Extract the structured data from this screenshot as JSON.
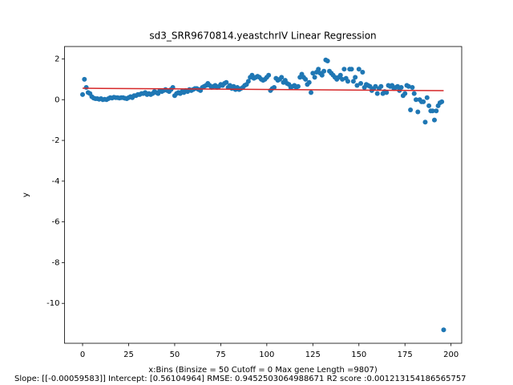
{
  "chart_data": {
    "type": "scatter",
    "title": "sd3_SRR9670814.yeastchrIV Linear Regression",
    "ylabel": "y",
    "xlabel": "x:Bins  (Binsize = 50 Cutoff = 0 Max gene Length =9807)",
    "stats": "Slope: [[-0.00059583]] Intercept: [0.56104964] RMSE: 0.9452503064988671 R2 score :0.001213154186565757",
    "xlim": [
      -9.8,
      205.8
    ],
    "ylim": [
      -11.96,
      2.61
    ],
    "xticks": [
      0,
      25,
      50,
      75,
      100,
      125,
      150,
      175,
      200
    ],
    "yticks": [
      -10,
      -8,
      -6,
      -4,
      -2,
      0,
      2
    ],
    "color": "#1f77b4",
    "values": [
      0.25,
      1.0,
      0.6,
      0.35,
      0.3,
      0.15,
      0.08,
      0.05,
      0.05,
      0.02,
      0.05,
      0,
      0.02,
      0,
      0.05,
      0.1,
      0.08,
      0.12,
      0.1,
      0.1,
      0.08,
      0.1,
      0.1,
      0.07,
      0.05,
      0.1,
      0.15,
      0.1,
      0.2,
      0.2,
      0.25,
      0.25,
      0.3,
      0.3,
      0.35,
      0.25,
      0.3,
      0.25,
      0.3,
      0.4,
      0.35,
      0.3,
      0.45,
      0.4,
      0.45,
      0.5,
      0.45,
      0.4,
      0.5,
      0.6,
      0.2,
      0.3,
      0.35,
      0.3,
      0.4,
      0.35,
      0.45,
      0.4,
      0.5,
      0.45,
      0.5,
      0.55,
      0.55,
      0.5,
      0.45,
      0.6,
      0.65,
      0.7,
      0.8,
      0.7,
      0.6,
      0.65,
      0.7,
      0.6,
      0.65,
      0.75,
      0.7,
      0.8,
      0.85,
      0.6,
      0.7,
      0.55,
      0.65,
      0.5,
      0.6,
      0.5,
      0.55,
      0.6,
      0.7,
      0.75,
      0.9,
      1.1,
      1.2,
      1.05,
      1.1,
      1.15,
      1.1,
      1.0,
      0.95,
      1.0,
      1.1,
      1.2,
      0.45,
      0.55,
      0.6,
      1.05,
      0.95,
      1.0,
      1.1,
      0.85,
      0.95,
      0.8,
      0.75,
      0.6,
      0.65,
      0.7,
      0.6,
      0.65,
      1.1,
      1.25,
      1.1,
      1.0,
      0.75,
      0.85,
      0.35,
      1.3,
      1.1,
      1.35,
      1.5,
      1.3,
      1.2,
      1.4,
      1.95,
      1.9,
      1.4,
      1.3,
      1.2,
      1.1,
      1.0,
      1.1,
      1.2,
      1.0,
      1.5,
      1.05,
      0.9,
      1.5,
      1.5,
      0.9,
      1.1,
      0.7,
      1.5,
      0.8,
      1.35,
      0.6,
      0.75,
      0.7,
      0.65,
      0.45,
      0.55,
      0.65,
      0.3,
      0.55,
      0.65,
      0.3,
      0.4,
      0.35,
      0.7,
      0.65,
      0.7,
      0.55,
      0.6,
      0.65,
      0.45,
      0.6,
      0.2,
      0.3,
      0.7,
      0.65,
      -0.5,
      0.6,
      0.3,
      0,
      -0.6,
      0,
      -0.1,
      -0.1,
      -1.1,
      0.1,
      -0.3,
      -0.55,
      -0.55,
      -1.0,
      -0.55,
      -0.3,
      -0.15,
      -0.1,
      -11.3
    ],
    "regression": {
      "color": "#d62728",
      "x": [
        0,
        196
      ],
      "values": [
        0.561,
        0.444
      ]
    }
  }
}
